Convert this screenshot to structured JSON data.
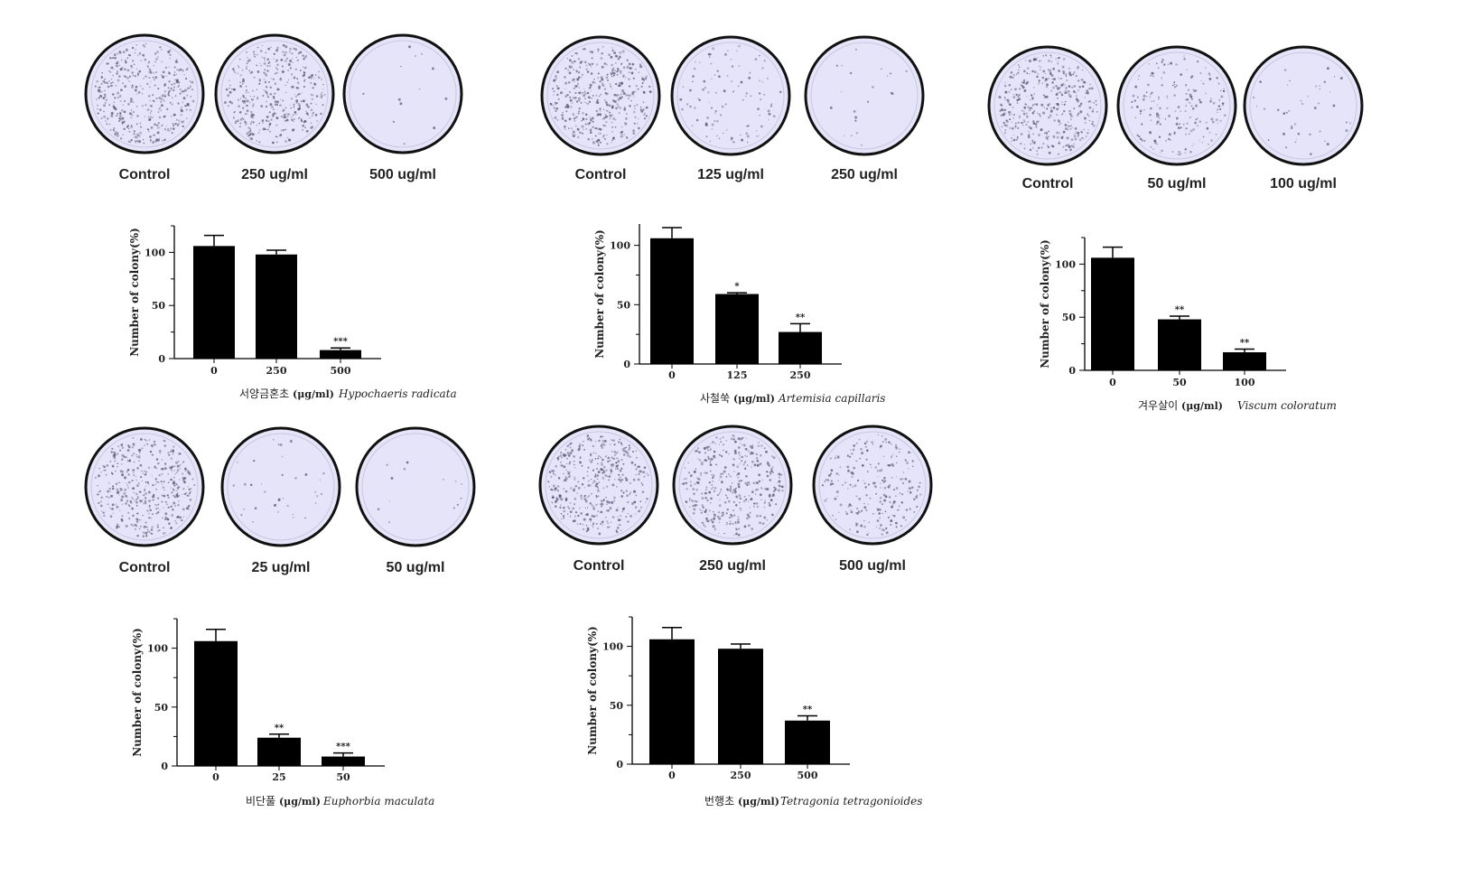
{
  "colors": {
    "bar": "#000000",
    "dish_fill": "#e6e4f8",
    "dish_rim": "#111111",
    "colony": "#5a5878"
  },
  "panels": [
    {
      "dish_labels": [
        "Control",
        "250 ug/ml",
        "500 ug/ml"
      ],
      "dish_colony_density": [
        1.0,
        0.95,
        0.03
      ],
      "chart_data": {
        "type": "bar",
        "categories": [
          "0",
          "250",
          "500"
        ],
        "values": [
          106,
          98,
          8
        ],
        "errors": [
          10,
          4,
          2
        ],
        "significance": [
          "",
          "",
          "***"
        ],
        "ylabel": "Number of colony(%)",
        "yticks": [
          0,
          50,
          100
        ],
        "ylim": [
          0,
          125
        ],
        "xlabel_ko": "서양금혼초",
        "xlabel_unit": "(μg/ml)",
        "xlabel_sci": "Hypochaeris  radicata"
      }
    },
    {
      "dish_labels": [
        "Control",
        "125 ug/ml",
        "250 ug/ml"
      ],
      "dish_colony_density": [
        1.0,
        0.25,
        0.05
      ],
      "chart_data": {
        "type": "bar",
        "categories": [
          "0",
          "125",
          "250"
        ],
        "values": [
          106,
          59,
          27
        ],
        "errors": [
          9,
          1,
          7
        ],
        "significance": [
          "",
          "*",
          "**"
        ],
        "ylabel": "Number of colony(%)",
        "yticks": [
          0,
          50,
          100
        ],
        "ylim": [
          0,
          118
        ],
        "xlabel_ko": "사철쑥",
        "xlabel_unit": "(μg/ml)",
        "xlabel_sci": "Artemisia capillaris"
      }
    },
    {
      "dish_labels": [
        "Control",
        "50 ug/ml",
        "100 ug/ml"
      ],
      "dish_colony_density": [
        1.0,
        0.45,
        0.1
      ],
      "chart_data": {
        "type": "bar",
        "categories": [
          "0",
          "50",
          "100"
        ],
        "values": [
          106,
          48,
          17
        ],
        "errors": [
          10,
          3,
          3
        ],
        "significance": [
          "",
          "**",
          "**"
        ],
        "ylabel": "Number of colony(%)",
        "yticks": [
          0,
          50,
          100
        ],
        "ylim": [
          0,
          125
        ],
        "xlabel_ko": "겨우살이",
        "xlabel_unit": "(μg/ml)",
        "xlabel_sci": "Viscum coloratum"
      }
    },
    {
      "dish_labels": [
        "Control",
        "25 ug/ml",
        "50 ug/ml"
      ],
      "dish_colony_density": [
        1.0,
        0.08,
        0.03
      ],
      "chart_data": {
        "type": "bar",
        "categories": [
          "0",
          "25",
          "50"
        ],
        "values": [
          106,
          24,
          8
        ],
        "errors": [
          10,
          3,
          3
        ],
        "significance": [
          "",
          "**",
          "***"
        ],
        "ylabel": "Number of colony(%)",
        "yticks": [
          0,
          50,
          100
        ],
        "ylim": [
          0,
          125
        ],
        "xlabel_ko": "비단풀",
        "xlabel_unit": "(μg/ml)",
        "xlabel_sci": "Euphorbia maculata"
      }
    },
    {
      "dish_labels": [
        "Control",
        "250 ug/ml",
        "500 ug/ml"
      ],
      "dish_colony_density": [
        1.0,
        0.9,
        0.55
      ],
      "chart_data": {
        "type": "bar",
        "categories": [
          "0",
          "250",
          "500"
        ],
        "values": [
          106,
          98,
          37
        ],
        "errors": [
          10,
          4,
          4
        ],
        "significance": [
          "",
          "",
          "**"
        ],
        "ylabel": "Number of colony(%)",
        "yticks": [
          0,
          50,
          100
        ],
        "ylim": [
          0,
          125
        ],
        "xlabel_ko": "번행초",
        "xlabel_unit": "(μg/ml)",
        "xlabel_sci": "Tetragonia tetragonioides"
      }
    }
  ]
}
